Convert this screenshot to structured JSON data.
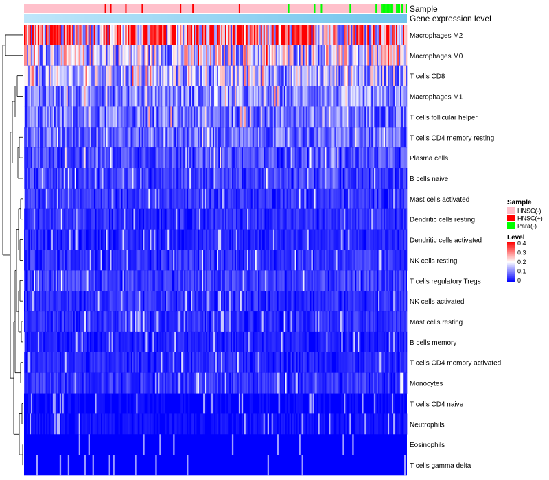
{
  "chart_data": {
    "type": "heatmap",
    "title": "",
    "column_annotations": [
      {
        "name": "Sample",
        "levels": [
          "HNSC(-)",
          "HNSC(+)",
          "Para(-)"
        ]
      },
      {
        "name": "Gene expression level",
        "description": "continuous gradient, light to darker blue, increasing left to right"
      }
    ],
    "rows": [
      {
        "name": "Macrophages M2",
        "mean": 0.27
      },
      {
        "name": "Macrophages M0",
        "mean": 0.17
      },
      {
        "name": "T cells CD8",
        "mean": 0.14
      },
      {
        "name": "Macrophages M1",
        "mean": 0.1
      },
      {
        "name": "T cells follicular helper",
        "mean": 0.09
      },
      {
        "name": "T cells CD4 memory resting",
        "mean": 0.08
      },
      {
        "name": "Plasma cells",
        "mean": 0.06
      },
      {
        "name": "B cells naive",
        "mean": 0.05
      },
      {
        "name": "Mast cells activated",
        "mean": 0.04
      },
      {
        "name": "Dendritic cells resting",
        "mean": 0.035
      },
      {
        "name": "Dendritic cells activated",
        "mean": 0.03
      },
      {
        "name": "NK cells resting",
        "mean": 0.04
      },
      {
        "name": "T cells regulatory  Tregs",
        "mean": 0.045
      },
      {
        "name": "NK cells activated",
        "mean": 0.035
      },
      {
        "name": "Mast cells resting",
        "mean": 0.035
      },
      {
        "name": "B cells memory",
        "mean": 0.025
      },
      {
        "name": "T cells CD4 memory activated",
        "mean": 0.03
      },
      {
        "name": "Monocytes",
        "mean": 0.04
      },
      {
        "name": "T cells CD4 naive",
        "mean": 0.01
      },
      {
        "name": "Neutrophils",
        "mean": 0.015
      },
      {
        "name": "Eosinophils",
        "mean": 0.005
      },
      {
        "name": "T cells gamma delta",
        "mean": 0.005
      }
    ],
    "legend": {
      "sample_title": "Sample",
      "sample_entries": [
        {
          "label": "HNSC(-)",
          "color": "#FFC0CB"
        },
        {
          "label": "HNSC(+)",
          "color": "#FF0000"
        },
        {
          "label": "Para(-)",
          "color": "#00FF00"
        }
      ],
      "level_title": "Level",
      "level_ticks": [
        "0.4",
        "0.3",
        "0.2",
        "0.1",
        "0"
      ],
      "level_values": [
        0.4,
        0.3,
        0.2,
        0.1,
        0
      ],
      "level_range": [
        0,
        0.4
      ],
      "placement": "right"
    },
    "colors": {
      "low": "#0000FF",
      "mid": "#FFFFFF",
      "high": "#FF0000",
      "gene_light": "#BFE6FA",
      "gene_dark": "#70C4EC"
    }
  }
}
